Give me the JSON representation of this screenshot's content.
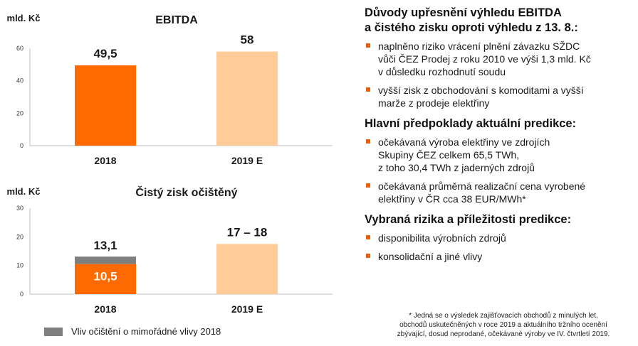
{
  "colors": {
    "orange": "#ff6a00",
    "light_orange": "#ffcc99",
    "gray": "#7f7f7f",
    "bullet": "#e8610a"
  },
  "chart_data": [
    {
      "type": "bar",
      "title": "EBITDA",
      "ylabel": "mld. Kč",
      "categories": [
        "2018",
        "2019 E"
      ],
      "values": [
        49.5,
        58
      ],
      "data_labels": [
        "49,5",
        "58"
      ],
      "ylim": [
        0,
        60
      ],
      "yticks": [
        "0",
        "20",
        "40",
        "60"
      ],
      "grid": false
    },
    {
      "type": "bar",
      "title": "Čistý zisk očištěný",
      "ylabel": "mld. Kč",
      "categories": [
        "2018",
        "2019 E"
      ],
      "series": [
        {
          "values": [
            10.5,
            17.5
          ]
        },
        {
          "name": "Vliv očištění o mimořádné vlivy 2018",
          "values": [
            2.6,
            0
          ]
        }
      ],
      "data_labels": [
        "10,5",
        "13,1",
        "17 – 18"
      ],
      "ylim": [
        0,
        30
      ],
      "yticks": [
        "0",
        "10",
        "20",
        "30"
      ],
      "legend": "bottom",
      "grid": false
    }
  ],
  "sections": [
    {
      "title_lines": [
        "Důvody upřesnění výhledu EBITDA",
        "a čistého zisku oproti výhledu z 13. 8.:"
      ],
      "bullets": [
        [
          "naplněno riziko vrácení plnění závazku SŽDC",
          "vůči ČEZ Prodej z roku 2010 ve výši 1,3 mld. Kč",
          "v důsledku rozhodnutí soudu"
        ],
        [
          "vyšší zisk z obchodování s komoditami a vyšší",
          "marže z prodeje elektřiny"
        ]
      ]
    },
    {
      "title_lines": [
        "Hlavní předpoklady aktuální predikce:"
      ],
      "bullets": [
        [
          "očekávaná výroba elektřiny ve zdrojích",
          "Skupiny ČEZ celkem 65,5 TWh,",
          "z toho 30,4 TWh z jaderných zdrojů"
        ],
        [
          "očekávaná průměrná realizační cena vyrobené",
          "elektřiny v ČR cca 38 EUR/MWh*"
        ]
      ]
    },
    {
      "title_lines": [
        "Vybraná rizika a příležitosti predikce:"
      ],
      "bullets": [
        [
          "disponibilita výrobních zdrojů"
        ],
        [
          "konsolidační a jiné vlivy"
        ]
      ]
    }
  ],
  "footnote": [
    "* Jedná se o výsledek zajišťovacích obchodů z minulých let,",
    "obchodů uskutečněných v roce 2019 a aktuálního tržního ocenění",
    "zbývající, dosud neprodané, očekávané výroby ve IV. čtvrtletí 2019."
  ]
}
